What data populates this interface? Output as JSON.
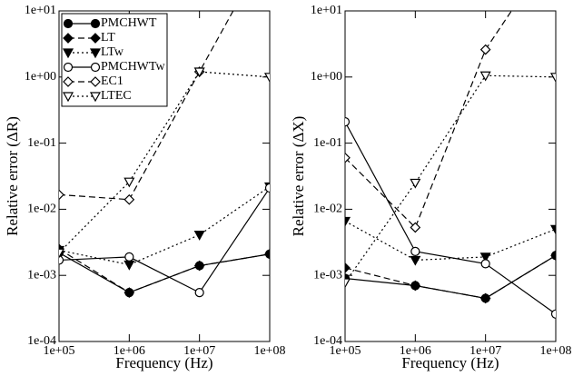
{
  "chart_data": [
    {
      "type": "line",
      "x_label": "Frequency (Hz)",
      "y_label": "Relative error (ΔR)",
      "log_x": true,
      "log_y": true,
      "legend": "upper left",
      "x": [
        100000,
        1000000,
        10000000,
        100000000
      ],
      "xlim": [
        100000,
        100000000
      ],
      "xticks": [
        {
          "value": 100000,
          "label": "1e+05"
        },
        {
          "value": 1000000,
          "label": "1e+06"
        },
        {
          "value": 10000000,
          "label": "1e+07"
        },
        {
          "value": 100000000,
          "label": "1e+08"
        }
      ],
      "ylim": [
        0.0001,
        10
      ],
      "yticks": [
        {
          "value": 0.0001,
          "label": "1e-04"
        },
        {
          "value": 0.001,
          "label": "1e-03"
        },
        {
          "value": 0.01,
          "label": "1e-02"
        },
        {
          "value": 0.1,
          "label": "1e-01"
        },
        {
          "value": 1,
          "label": "1e+00"
        },
        {
          "value": 10,
          "label": "1e+01"
        }
      ],
      "series": [
        {
          "name": "PMCHWT",
          "color": "#000000",
          "line_style": "solid",
          "marker": "circle",
          "filled": true,
          "values": [
            0.0022,
            0.00055,
            0.0014,
            0.0021
          ]
        },
        {
          "name": "LT",
          "color": "#000000",
          "line_style": "dashed",
          "marker": "diamond",
          "filled": true,
          "values": [
            0.0025,
            0.00055,
            0.0014,
            0.0021
          ]
        },
        {
          "name": "LTw",
          "color": "#000000",
          "line_style": "dotted",
          "marker": "triangle-down",
          "filled": true,
          "values": [
            0.0024,
            0.00145,
            0.0041,
            0.022
          ]
        },
        {
          "name": "PMCHWTw",
          "color": "#000000",
          "line_style": "solid",
          "marker": "circle",
          "filled": false,
          "values": [
            0.0017,
            0.0019,
            0.00055,
            0.021
          ]
        },
        {
          "name": "EC1",
          "color": "#000000",
          "line_style": "dashed",
          "marker": "diamond",
          "filled": false,
          "values": [
            0.0166,
            0.014,
            1.2,
            100
          ]
        },
        {
          "name": "LTEC",
          "color": "#000000",
          "line_style": "dotted",
          "marker": "triangle-down",
          "filled": false,
          "values": [
            0.0022,
            0.026,
            1.2,
            1.0
          ]
        }
      ]
    },
    {
      "type": "line",
      "x_label": "Frequency (Hz)",
      "y_label": "Relative error (ΔX)",
      "log_x": true,
      "log_y": true,
      "x": [
        100000,
        1000000,
        10000000,
        100000000
      ],
      "xlim": [
        100000,
        100000000
      ],
      "xticks": [
        {
          "value": 100000,
          "label": "1e+05"
        },
        {
          "value": 1000000,
          "label": "1e+06"
        },
        {
          "value": 10000000,
          "label": "1e+07"
        },
        {
          "value": 100000000,
          "label": "1e+08"
        }
      ],
      "ylim": [
        0.0001,
        10
      ],
      "yticks": [
        {
          "value": 0.0001,
          "label": "1e-04"
        },
        {
          "value": 0.001,
          "label": "1e-03"
        },
        {
          "value": 0.01,
          "label": "1e-02"
        },
        {
          "value": 0.1,
          "label": "1e-01"
        },
        {
          "value": 1,
          "label": "1e+00"
        },
        {
          "value": 10,
          "label": "1e+01"
        }
      ],
      "series": [
        {
          "name": "PMCHWT",
          "color": "#000000",
          "line_style": "solid",
          "marker": "circle",
          "filled": true,
          "values": [
            0.0009,
            0.0007,
            0.00045,
            0.002
          ]
        },
        {
          "name": "LT",
          "color": "#000000",
          "line_style": "dashed",
          "marker": "diamond",
          "filled": true,
          "values": [
            0.0013,
            0.0007,
            0.00045,
            0.002
          ]
        },
        {
          "name": "LTw",
          "color": "#000000",
          "line_style": "dotted",
          "marker": "triangle-down",
          "filled": true,
          "values": [
            0.0066,
            0.0017,
            0.0019,
            0.005
          ]
        },
        {
          "name": "PMCHWTw",
          "color": "#000000",
          "line_style": "solid",
          "marker": "circle",
          "filled": false,
          "values": [
            0.21,
            0.0023,
            0.0015,
            0.00026
          ]
        },
        {
          "name": "EC1",
          "color": "#000000",
          "line_style": "dashed",
          "marker": "diamond",
          "filled": false,
          "values": [
            0.06,
            0.0053,
            2.6,
            100
          ]
        },
        {
          "name": "LTEC",
          "color": "#000000",
          "line_style": "dotted",
          "marker": "triangle-down",
          "filled": false,
          "values": [
            0.00078,
            0.025,
            1.05,
            1.0
          ]
        }
      ]
    }
  ]
}
